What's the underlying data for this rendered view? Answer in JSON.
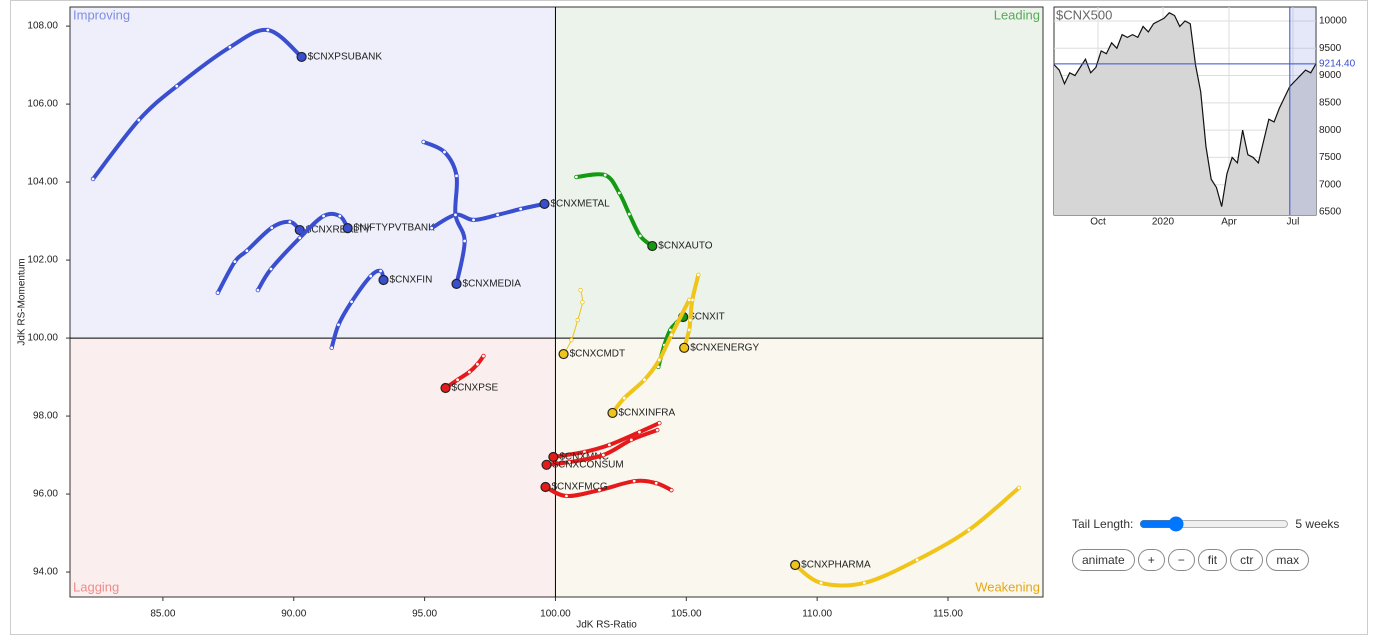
{
  "chart_data": [
    {
      "type": "rrg",
      "x_label": "JdK RS-Ratio",
      "y_label": "JdK RS-Momentum",
      "xlim": [
        81.45,
        118.63
      ],
      "ylim": [
        93.36,
        108.49
      ],
      "center": [
        100,
        100
      ],
      "xticks": [
        {
          "value": 85,
          "label": "85.00"
        },
        {
          "value": 90,
          "label": "90.00"
        },
        {
          "value": 95,
          "label": "95.00"
        },
        {
          "value": 100,
          "label": "100.00"
        },
        {
          "value": 105,
          "label": "105.00"
        },
        {
          "value": 110,
          "label": "110.00"
        },
        {
          "value": 115,
          "label": "115.00"
        }
      ],
      "yticks": [
        {
          "value": 94,
          "label": "94.00"
        },
        {
          "value": 96,
          "label": "96.00"
        },
        {
          "value": 98,
          "label": "98.00"
        },
        {
          "value": 100,
          "label": "100.00"
        },
        {
          "value": 102,
          "label": "102.00"
        },
        {
          "value": 104,
          "label": "104.00"
        },
        {
          "value": 106,
          "label": "106.00"
        },
        {
          "value": 108,
          "label": "108.00"
        }
      ],
      "quadrants": {
        "improving": "Improving",
        "leading": "Leading",
        "lagging": "Lagging",
        "weakening": "Weakening"
      },
      "series": [
        {
          "name": "$CNXPSUBANK",
          "color": "#3a4fcf",
          "x": [
            82.33,
            84.08,
            85.53,
            87.56,
            89.01,
            90.3
          ],
          "y": [
            104.08,
            105.59,
            106.46,
            107.46,
            107.9,
            107.21
          ]
        },
        {
          "name": "$CNXREALTY",
          "color": "#3a4fcf",
          "x": [
            87.1,
            87.75,
            88.21,
            89.16,
            89.85,
            90.23
          ],
          "y": [
            101.16,
            101.96,
            102.24,
            102.83,
            102.98,
            102.77
          ]
        },
        {
          "name": "$NIFTYPVTBANK",
          "color": "#3a4fcf",
          "x": [
            88.63,
            89.13,
            90.23,
            91.14,
            91.76,
            92.06
          ],
          "y": [
            101.23,
            101.77,
            102.57,
            103.13,
            103.13,
            102.82
          ]
        },
        {
          "name": "$CNXFIN",
          "color": "#3a4fcf",
          "x": [
            91.45,
            91.71,
            92.21,
            92.94,
            93.32,
            93.43
          ],
          "y": [
            99.75,
            100.34,
            100.93,
            101.59,
            101.72,
            101.49
          ]
        },
        {
          "name": "$CNXMEDIA",
          "color": "#3a4fcf",
          "x": [
            94.96,
            95.76,
            96.22,
            96.18,
            96.53,
            96.22
          ],
          "y": [
            105.03,
            104.77,
            104.16,
            103.16,
            102.49,
            101.39
          ]
        },
        {
          "name": "$CNXMETAL",
          "color": "#3a4fcf",
          "x": [
            95.27,
            96.18,
            96.87,
            97.79,
            98.67,
            99.58
          ],
          "y": [
            102.82,
            103.16,
            103.03,
            103.16,
            103.31,
            103.44
          ]
        },
        {
          "name": "$CNXAUTO",
          "color": "#139a12",
          "x": [
            100.8,
            101.9,
            102.44,
            102.82,
            103.24,
            103.7
          ],
          "y": [
            104.13,
            104.18,
            103.72,
            103.18,
            102.62,
            102.36
          ]
        },
        {
          "name": "$CNXIT",
          "color": "#139a12",
          "x": [
            103.93,
            104.16,
            104.39,
            104.62,
            104.88
          ],
          "y": [
            99.26,
            99.82,
            100.21,
            100.39,
            100.54
          ]
        },
        {
          "name": "$CNXENERGY",
          "color": "#f0c419",
          "x": [
            105.46,
            105.23,
            105.15,
            105.11,
            104.92
          ],
          "y": [
            101.62,
            100.98,
            100.46,
            100.21,
            99.75
          ]
        },
        {
          "name": "$CNXCMDT",
          "color": "#f0c419",
          "thin": true,
          "x": [
            100.96,
            101.03,
            100.85,
            100.61,
            100.31
          ],
          "y": [
            101.23,
            100.92,
            100.46,
            99.95,
            99.59
          ]
        },
        {
          "name": "$CNXINFRA",
          "color": "#f0c419",
          "x": [
            105.11,
            104.43,
            103.97,
            103.4,
            102.63,
            102.18
          ],
          "y": [
            100.98,
            100.08,
            99.44,
            98.93,
            98.46,
            98.08
          ]
        },
        {
          "name": "$CNXPSE",
          "color": "#e51b1b",
          "x": [
            97.25,
            97.02,
            96.71,
            96.26,
            95.8
          ],
          "y": [
            99.54,
            99.33,
            99.13,
            98.93,
            98.72
          ]
        },
        {
          "name": "$CNXMNC",
          "color": "#e51b1b",
          "x": [
            103.97,
            103.21,
            102.06,
            101.11,
            99.92
          ],
          "y": [
            97.82,
            97.59,
            97.26,
            97.08,
            96.95
          ]
        },
        {
          "name": "$CNXCONSUM",
          "color": "#e51b1b",
          "x": [
            103.89,
            102.9,
            101.83,
            100.53,
            99.66
          ],
          "y": [
            97.64,
            97.39,
            97.0,
            96.82,
            96.75
          ]
        },
        {
          "name": "$CNXFMCG",
          "color": "#e51b1b",
          "x": [
            104.43,
            103.85,
            103.01,
            101.68,
            100.42,
            99.62
          ],
          "y": [
            96.1,
            96.28,
            96.33,
            96.1,
            95.95,
            96.18
          ]
        },
        {
          "name": "$CNXPHARMA",
          "color": "#f0c419",
          "x": [
            117.71,
            115.8,
            113.82,
            111.8,
            110.15,
            109.16
          ],
          "y": [
            96.16,
            95.08,
            94.31,
            93.72,
            93.72,
            94.18
          ]
        }
      ]
    },
    {
      "type": "line",
      "title": "$CNX500",
      "color": "#111111",
      "values": [
        9200,
        9100,
        8850,
        9050,
        9000,
        9150,
        9300,
        9050,
        9150,
        9450,
        9400,
        9600,
        9500,
        9750,
        9700,
        9750,
        9700,
        9900,
        9800,
        9950,
        10000,
        10050,
        10150,
        10100,
        9900,
        10000,
        9950,
        9200,
        8700,
        7700,
        7100,
        6950,
        6600,
        7200,
        7500,
        7400,
        8000,
        7550,
        7500,
        7400,
        7800,
        8200,
        8150,
        8400,
        8600,
        8800,
        8900,
        9000,
        9100,
        9050,
        9214.4
      ],
      "last_value_label": "9214.40",
      "xlim": [
        0,
        50
      ],
      "ylim": [
        6445,
        10256
      ],
      "xticks": [
        {
          "value": 8.4,
          "label": "Oct"
        },
        {
          "value": 20.8,
          "label": "2020"
        },
        {
          "value": 33.4,
          "label": "Apr"
        },
        {
          "value": 45.6,
          "label": "Jul"
        }
      ],
      "yticks": [
        6500,
        7000,
        7500,
        8000,
        8500,
        9000,
        9500,
        10000
      ]
    }
  ],
  "controls": {
    "tail_label": "Tail Length:",
    "tail_value": "5 weeks",
    "buttons": [
      "animate",
      "+",
      "−",
      "fit",
      "ctr",
      "max"
    ]
  }
}
